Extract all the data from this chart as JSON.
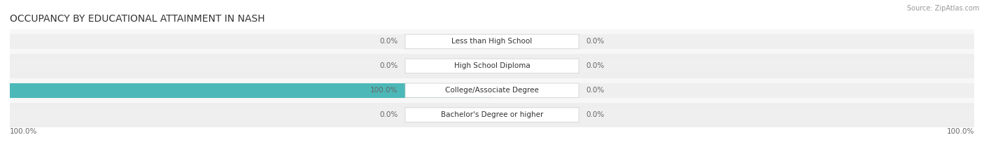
{
  "title": "OCCUPANCY BY EDUCATIONAL ATTAINMENT IN NASH",
  "source": "Source: ZipAtlas.com",
  "categories": [
    "Less than High School",
    "High School Diploma",
    "College/Associate Degree",
    "Bachelor's Degree or higher"
  ],
  "owner_values": [
    0.0,
    0.0,
    100.0,
    0.0
  ],
  "renter_values": [
    0.0,
    0.0,
    0.0,
    0.0
  ],
  "owner_color": "#4db8b8",
  "renter_color": "#f4a0b5",
  "bar_bg_color_light": "#efefef",
  "bar_bg_color_dark": "#e5e5e5",
  "row_bg_light": "#f7f7f7",
  "row_bg_dark": "#eeeeee",
  "label_color": "#666666",
  "title_color": "#333333",
  "source_color": "#999999",
  "axis_label_left": "100.0%",
  "axis_label_right": "100.0%",
  "figsize": [
    14.06,
    2.33
  ],
  "dpi": 100
}
